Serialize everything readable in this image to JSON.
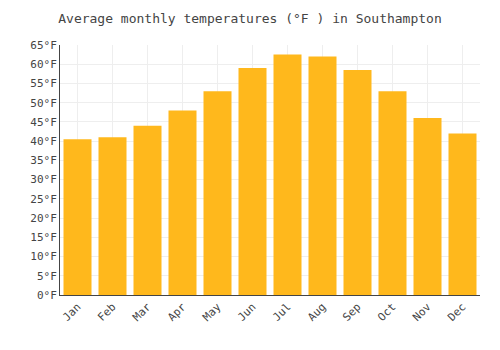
{
  "chart_data": {
    "type": "bar",
    "title": "Average monthly temperatures (°F ) in Southampton",
    "categories": [
      "Jan",
      "Feb",
      "Mar",
      "Apr",
      "May",
      "Jun",
      "Jul",
      "Aug",
      "Sep",
      "Oct",
      "Nov",
      "Dec"
    ],
    "values": [
      40.5,
      41.0,
      44.0,
      48.0,
      53.0,
      59.0,
      62.5,
      62.0,
      58.5,
      53.0,
      46.0,
      42.0
    ],
    "color": "#FFB81C",
    "ylim": [
      0,
      65
    ],
    "yticks": [
      {
        "value": 0,
        "label": "0°F"
      },
      {
        "value": 5,
        "label": "5°F"
      },
      {
        "value": 10,
        "label": "10°F"
      },
      {
        "value": 15,
        "label": "15°F"
      },
      {
        "value": 20,
        "label": "20°F"
      },
      {
        "value": 25,
        "label": "25°F"
      },
      {
        "value": 30,
        "label": "30°F"
      },
      {
        "value": 35,
        "label": "35°F"
      },
      {
        "value": 40,
        "label": "40°F"
      },
      {
        "value": 45,
        "label": "45°F"
      },
      {
        "value": 50,
        "label": "50°F"
      },
      {
        "value": 55,
        "label": "55°F"
      },
      {
        "value": 60,
        "label": "60°F"
      },
      {
        "value": 65,
        "label": "65°F"
      }
    ],
    "grid": true
  }
}
